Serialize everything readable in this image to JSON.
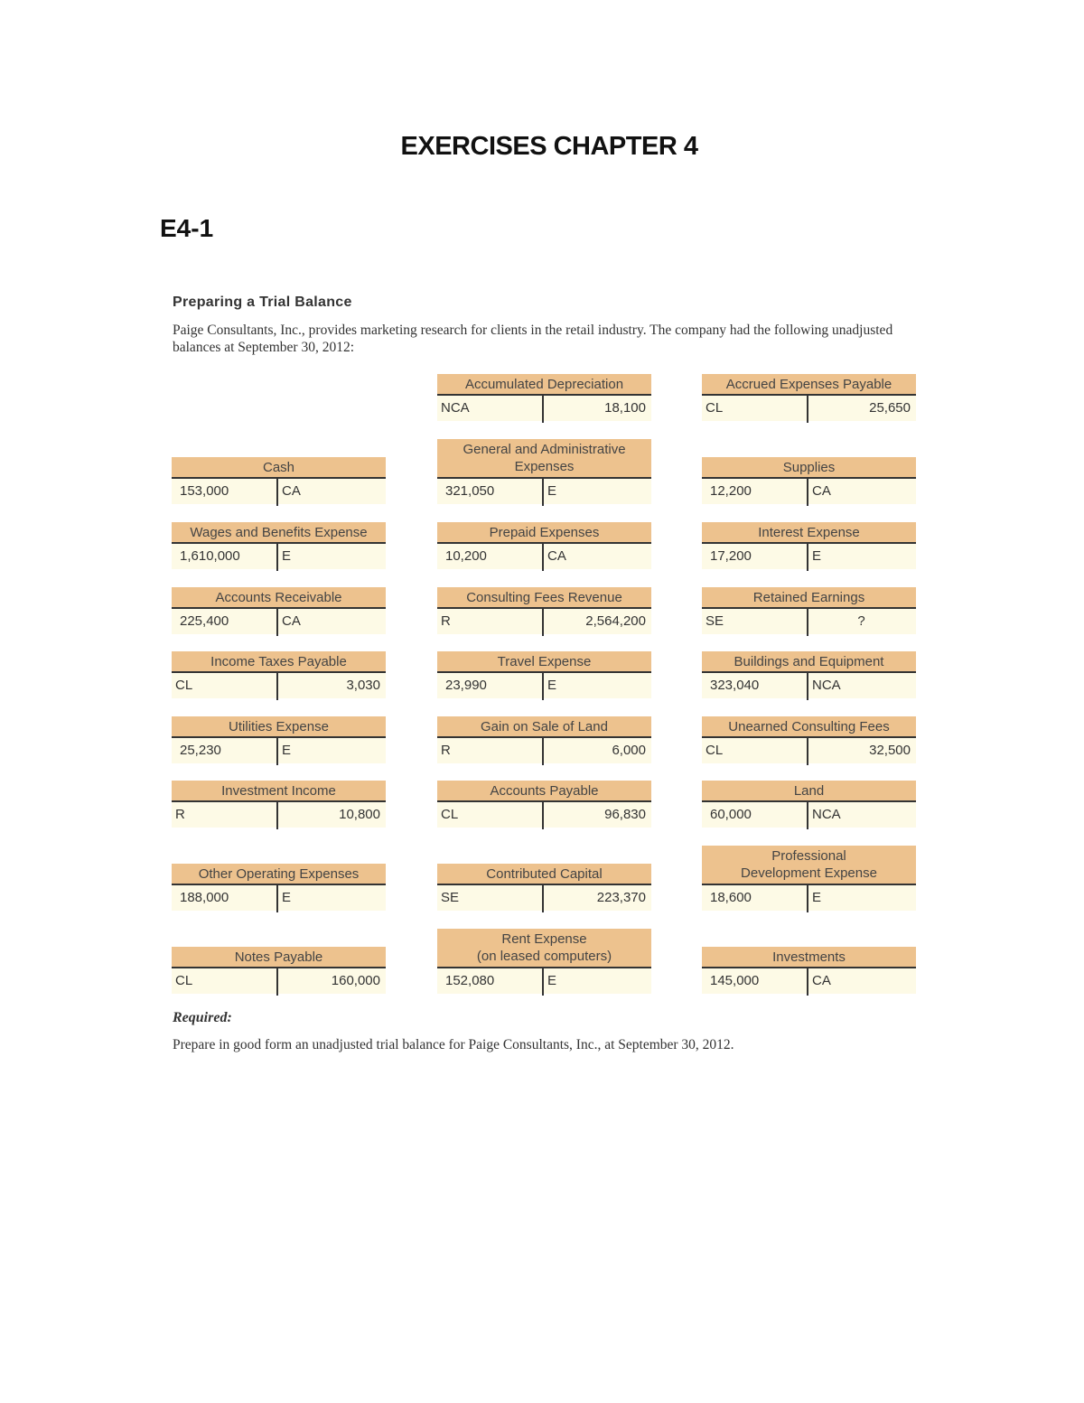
{
  "title": "EXERCISES CHAPTER 4",
  "exercise_id": "E4-1",
  "section_title": "Preparing a Trial Balance",
  "intro": "Paige Consultants, Inc., provides marketing research for clients in the retail industry. The company had the following unadjusted balances at September 30, 2012:",
  "colors": {
    "header": "#edc28e",
    "body": "#fdfae6"
  },
  "accounts": [
    {
      "title": "Cash",
      "left": "153,000",
      "right": "CA"
    },
    {
      "title": "Wages and Benefits Expense",
      "left": "1,610,000",
      "right": "E"
    },
    {
      "title": "Accounts Receivable",
      "left": "225,400",
      "right": "CA"
    },
    {
      "title": "Income Taxes Payable",
      "left": "CL",
      "right": "3,030"
    },
    {
      "title": "Utilities Expense",
      "left": "25,230",
      "right": "E"
    },
    {
      "title": "Investment Income",
      "left": "R",
      "right": "10,800"
    },
    {
      "title": "Other Operating Expenses",
      "left": "188,000",
      "right": "E"
    },
    {
      "title": "Notes Payable",
      "left": "CL",
      "right": "160,000"
    },
    {
      "title": "Accumulated Depreciation",
      "left": "NCA",
      "right": "18,100"
    },
    {
      "title": "General and Administrative Expenses",
      "left": "321,050",
      "right": "E"
    },
    {
      "title": "Prepaid Expenses",
      "left": "10,200",
      "right": "CA"
    },
    {
      "title": "Consulting Fees Revenue",
      "left": "R",
      "right": "2,564,200"
    },
    {
      "title": "Travel Expense",
      "left": "23,990",
      "right": "E"
    },
    {
      "title": "Gain on Sale of Land",
      "left": "R",
      "right": "6,000"
    },
    {
      "title": "Accounts Payable",
      "left": "CL",
      "right": "96,830"
    },
    {
      "title": "Contributed Capital",
      "left": "SE",
      "right": "223,370"
    },
    {
      "title": "Rent Expense (on leased computers)",
      "left": "152,080",
      "right": "E"
    },
    {
      "title": "Accrued Expenses Payable",
      "left": "CL",
      "right": "25,650"
    },
    {
      "title": "Supplies",
      "left": "12,200",
      "right": "CA"
    },
    {
      "title": "Interest Expense",
      "left": "17,200",
      "right": "E"
    },
    {
      "title": "Retained Earnings",
      "left": "SE",
      "right": "?"
    },
    {
      "title": "Buildings and Equipment",
      "left": "323,040",
      "right": "NCA"
    },
    {
      "title": "Unearned Consulting Fees",
      "left": "CL",
      "right": "32,500"
    },
    {
      "title": "Land",
      "left": "60,000",
      "right": "NCA"
    },
    {
      "title": "Professional Development Expense",
      "left": "18,600",
      "right": "E"
    },
    {
      "title": "Investments",
      "left": "145,000",
      "right": "CA"
    }
  ],
  "required_label": "Required:",
  "required_text": "Prepare in good form an unadjusted trial balance for Paige Consultants, Inc., at September 30, 2012."
}
